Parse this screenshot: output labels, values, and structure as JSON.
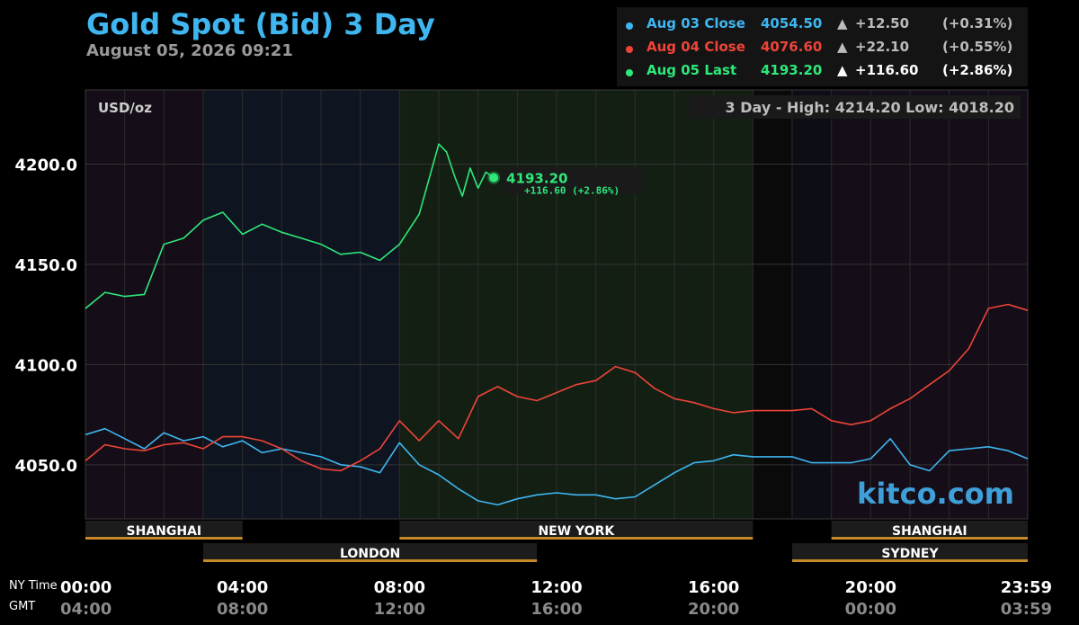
{
  "header": {
    "title": "Gold Spot (Bid) 3 Day",
    "date": "August 05, 2026 09:21"
  },
  "legend": [
    {
      "label": "Aug 03 Close",
      "value": "4054.50",
      "arrow": "▲",
      "change": "+12.50",
      "pct": "(+0.31%)",
      "color": "#3fb6f0",
      "emph": false
    },
    {
      "label": "Aug 04 Close",
      "value": "4076.60",
      "arrow": "▲",
      "change": "+22.10",
      "pct": "(+0.55%)",
      "color": "#ee4438",
      "emph": false
    },
    {
      "label": "Aug 05 Last",
      "value": "4193.20",
      "arrow": "▲",
      "change": "+116.60",
      "pct": "(+2.86%)",
      "color": "#2ee87a",
      "emph": true
    }
  ],
  "chart_data": {
    "type": "line",
    "unit_label": "USD/oz",
    "range_text": "3 Day - High: 4214.20  Low: 4018.20",
    "watermark": "kitco.com",
    "y_ticks": [
      "4200.0",
      "4150.0",
      "4100.0",
      "4050.0"
    ],
    "y_tick_values": [
      4200,
      4150,
      4100,
      4050
    ],
    "ylim": [
      4023,
      4237
    ],
    "xlim": [
      0,
      24
    ],
    "x_ticks_ny": [
      "00:00",
      "04:00",
      "08:00",
      "12:00",
      "16:00",
      "20:00",
      "23:59"
    ],
    "x_ticks_gmt": [
      "04:00",
      "08:00",
      "12:00",
      "16:00",
      "20:00",
      "00:00",
      "03:59"
    ],
    "x_tick_hours": [
      0,
      4,
      8,
      12,
      16,
      20,
      24
    ],
    "row_label_ny": "NY Time",
    "row_label_gmt": "GMT",
    "sessions": [
      {
        "name": "SHANGHAI",
        "start": 0,
        "end": 4,
        "row": 0
      },
      {
        "name": "NEW YORK",
        "start": 8,
        "end": 17,
        "row": 0
      },
      {
        "name": "SHANGHAI",
        "start": 19,
        "end": 24,
        "row": 0
      },
      {
        "name": "LONDON",
        "start": 3,
        "end": 11.5,
        "row": 1
      },
      {
        "name": "SYDNEY",
        "start": 18,
        "end": 24,
        "row": 1
      }
    ],
    "series": [
      {
        "name": "Aug 03 Close",
        "color": "#3fb6f0",
        "points": [
          [
            0,
            4065
          ],
          [
            0.5,
            4068
          ],
          [
            1,
            4063
          ],
          [
            1.5,
            4058
          ],
          [
            2,
            4066
          ],
          [
            2.5,
            4062
          ],
          [
            3,
            4064
          ],
          [
            3.5,
            4059
          ],
          [
            4,
            4062
          ],
          [
            4.5,
            4056
          ],
          [
            5,
            4058
          ],
          [
            5.5,
            4056
          ],
          [
            6,
            4054
          ],
          [
            6.5,
            4050
          ],
          [
            7,
            4049
          ],
          [
            7.5,
            4046
          ],
          [
            8,
            4061
          ],
          [
            8.5,
            4050
          ],
          [
            9,
            4045
          ],
          [
            9.5,
            4038
          ],
          [
            10,
            4032
          ],
          [
            10.5,
            4030
          ],
          [
            11,
            4033
          ],
          [
            11.5,
            4035
          ],
          [
            12,
            4036
          ],
          [
            12.5,
            4035
          ],
          [
            13,
            4035
          ],
          [
            13.5,
            4033
          ],
          [
            14,
            4034
          ],
          [
            14.5,
            4040
          ],
          [
            15,
            4046
          ],
          [
            15.5,
            4051
          ],
          [
            16,
            4052
          ],
          [
            16.5,
            4055
          ],
          [
            17,
            4054
          ],
          [
            18,
            4054
          ],
          [
            18.5,
            4051
          ],
          [
            19,
            4051
          ],
          [
            19.5,
            4051
          ],
          [
            20,
            4053
          ],
          [
            20.5,
            4063
          ],
          [
            21,
            4050
          ],
          [
            21.5,
            4047
          ],
          [
            22,
            4057
          ],
          [
            22.5,
            4058
          ],
          [
            23,
            4059
          ],
          [
            23.5,
            4057
          ],
          [
            24,
            4053
          ]
        ]
      },
      {
        "name": "Aug 04 Close",
        "color": "#ee4438",
        "points": [
          [
            0,
            4052
          ],
          [
            0.5,
            4060
          ],
          [
            1,
            4058
          ],
          [
            1.5,
            4057
          ],
          [
            2,
            4060
          ],
          [
            2.5,
            4061
          ],
          [
            3,
            4058
          ],
          [
            3.5,
            4064
          ],
          [
            4,
            4064
          ],
          [
            4.5,
            4062
          ],
          [
            5,
            4058
          ],
          [
            5.5,
            4052
          ],
          [
            6,
            4048
          ],
          [
            6.5,
            4047
          ],
          [
            7,
            4052
          ],
          [
            7.5,
            4058
          ],
          [
            8,
            4072
          ],
          [
            8.5,
            4062
          ],
          [
            9,
            4072
          ],
          [
            9.5,
            4063
          ],
          [
            10,
            4084
          ],
          [
            10.5,
            4089
          ],
          [
            11,
            4084
          ],
          [
            11.5,
            4082
          ],
          [
            12,
            4086
          ],
          [
            12.5,
            4090
          ],
          [
            13,
            4092
          ],
          [
            13.5,
            4099
          ],
          [
            14,
            4096
          ],
          [
            14.5,
            4088
          ],
          [
            15,
            4083
          ],
          [
            15.5,
            4081
          ],
          [
            16,
            4078
          ],
          [
            16.5,
            4076
          ],
          [
            17,
            4077
          ],
          [
            18,
            4077
          ],
          [
            18.5,
            4078
          ],
          [
            19,
            4072
          ],
          [
            19.5,
            4070
          ],
          [
            20,
            4072
          ],
          [
            20.5,
            4078
          ],
          [
            21,
            4083
          ],
          [
            21.5,
            4090
          ],
          [
            22,
            4097
          ],
          [
            22.5,
            4108
          ],
          [
            23,
            4128
          ],
          [
            23.5,
            4130
          ],
          [
            24,
            4127
          ]
        ]
      },
      {
        "name": "Aug 05 Last",
        "color": "#2ee87a",
        "points": [
          [
            0,
            4128
          ],
          [
            0.5,
            4136
          ],
          [
            1,
            4134
          ],
          [
            1.5,
            4135
          ],
          [
            2,
            4160
          ],
          [
            2.5,
            4163
          ],
          [
            3,
            4172
          ],
          [
            3.5,
            4176
          ],
          [
            4,
            4165
          ],
          [
            4.5,
            4170
          ],
          [
            5,
            4166
          ],
          [
            5.5,
            4163
          ],
          [
            6,
            4160
          ],
          [
            6.5,
            4155
          ],
          [
            7,
            4156
          ],
          [
            7.5,
            4152
          ],
          [
            8,
            4160
          ],
          [
            8.5,
            4175
          ],
          [
            9,
            4210
          ],
          [
            9.2,
            4206
          ],
          [
            9.4,
            4194
          ],
          [
            9.6,
            4184
          ],
          [
            9.8,
            4198
          ],
          [
            10,
            4188
          ],
          [
            10.2,
            4196
          ],
          [
            10.4,
            4193.2
          ]
        ]
      }
    ],
    "last_point": {
      "x": 10.4,
      "y": 4193.2,
      "label": "4193.20",
      "sub": "+116.60 (+2.86%)"
    }
  }
}
